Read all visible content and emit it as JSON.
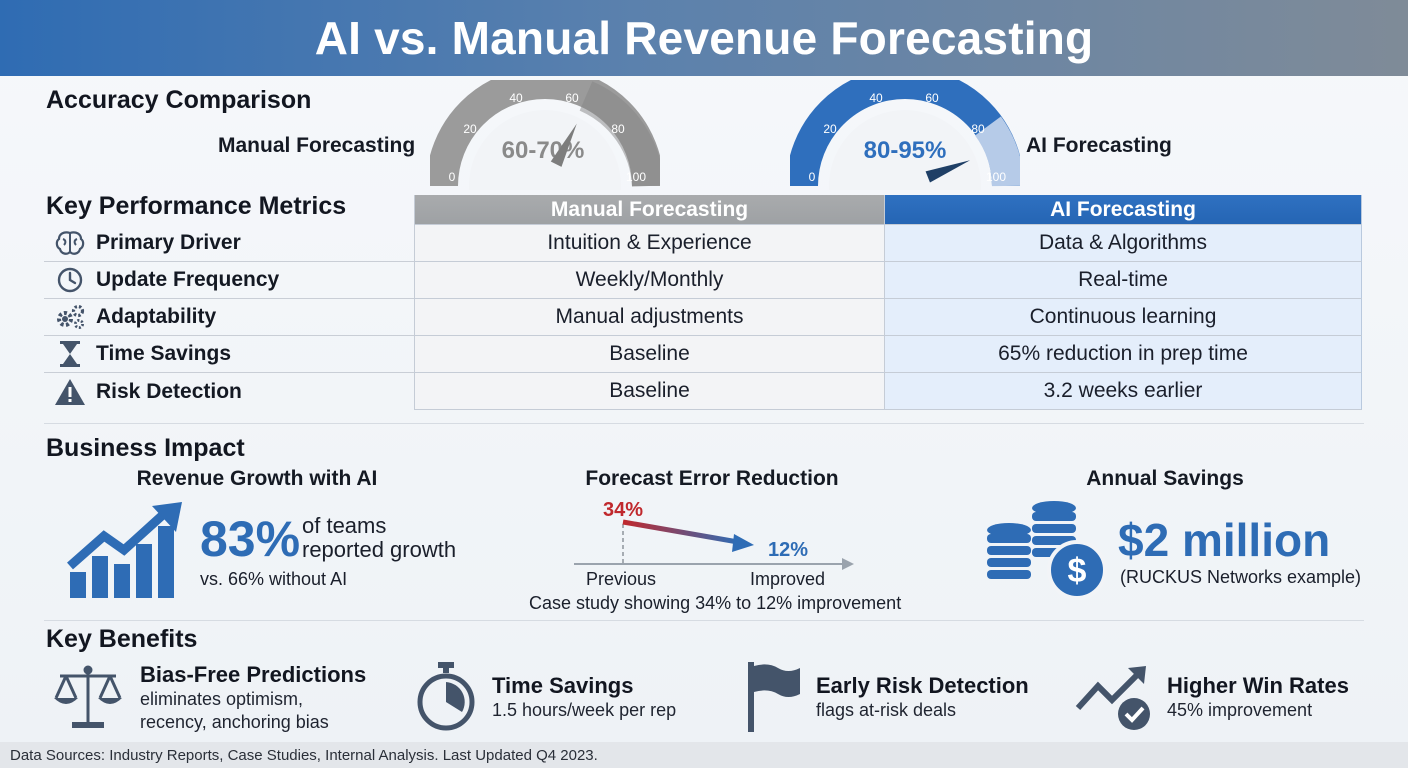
{
  "header": {
    "title": "AI vs. Manual Revenue Forecasting"
  },
  "accuracy": {
    "title": "Accuracy Comparison",
    "manual": {
      "label": "Manual Forecasting",
      "value_text": "60-70%",
      "ticks": [
        "0",
        "20",
        "40",
        "60",
        "80",
        "100"
      ],
      "needle_value": 65,
      "color": "#9a9a9a"
    },
    "ai": {
      "label": "AI Forecasting",
      "value_text": "80-95%",
      "ticks": [
        "0",
        "20",
        "40",
        "60",
        "80",
        "100"
      ],
      "needle_value": 88,
      "color": "#2f6fbd"
    }
  },
  "metrics": {
    "title": "Key Performance Metrics",
    "columns": [
      "Manual Forecasting",
      "AI Forecasting"
    ],
    "rows": [
      {
        "icon": "brain-icon",
        "label": "Primary Driver",
        "manual": "Intuition & Experience",
        "ai": "Data & Algorithms"
      },
      {
        "icon": "clock-icon",
        "label": "Update Frequency",
        "manual": "Weekly/Monthly",
        "ai": "Real-time"
      },
      {
        "icon": "gears-icon",
        "label": "Adaptability",
        "manual": "Manual adjustments",
        "ai": "Continuous learning"
      },
      {
        "icon": "hourglass-icon",
        "label": "Time Savings",
        "manual": "Baseline",
        "ai": "65% reduction in prep time"
      },
      {
        "icon": "warning-icon",
        "label": "Risk Detection",
        "manual": "Baseline",
        "ai": "3.2 weeks earlier"
      }
    ]
  },
  "impact": {
    "title": "Business Impact",
    "growth": {
      "title": "Revenue Growth with AI",
      "value": "83%",
      "text_line1": "of teams",
      "text_line2": "reported growth",
      "sub": "vs. 66% without AI"
    },
    "error": {
      "title": "Forecast Error Reduction",
      "from": "34%",
      "to": "12%",
      "from_label": "Previous",
      "to_label": "Improved",
      "caption": "Case study showing 34% to 12% improvement"
    },
    "savings": {
      "title": "Annual Savings",
      "value": "$2 million",
      "sub": "(RUCKUS Networks example)"
    }
  },
  "benefits": {
    "title": "Key Benefits",
    "items": [
      {
        "icon": "scales-icon",
        "title": "Bias-Free Predictions",
        "desc1": "eliminates optimism,",
        "desc2": "recency, anchoring bias"
      },
      {
        "icon": "stopwatch-icon",
        "title": "Time Savings",
        "desc1": "1.5 hours/week per rep",
        "desc2": ""
      },
      {
        "icon": "flag-icon",
        "title": "Early Risk Detection",
        "desc1": "flags at-risk deals",
        "desc2": ""
      },
      {
        "icon": "trend-check-icon",
        "title": "Higher Win Rates",
        "desc1": "45% improvement",
        "desc2": ""
      }
    ]
  },
  "footer": {
    "text": "Data Sources: Industry Reports, Case Studies, Internal Analysis. Last Updated Q4 2023."
  },
  "colors": {
    "brand_blue": "#2e6cb5",
    "manual_gray": "#9ea1a4",
    "error_red": "#c0282d"
  }
}
